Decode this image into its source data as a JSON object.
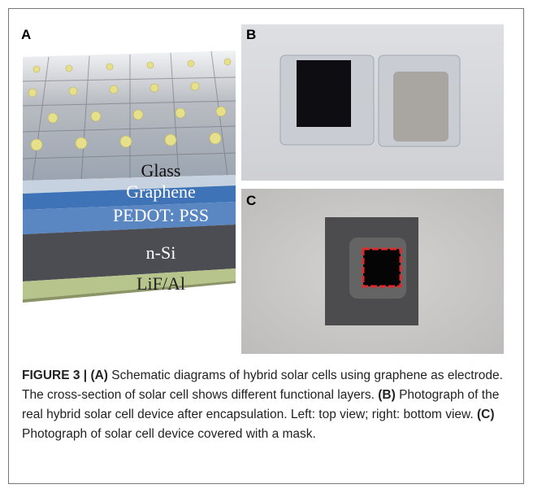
{
  "panels": {
    "a": {
      "label": "A",
      "layers": [
        "Glass",
        "Graphene",
        "PEDOT: PSS",
        "n-Si",
        "LiF/Al"
      ]
    },
    "b": {
      "label": "B"
    },
    "c": {
      "label": "C"
    }
  },
  "caption": {
    "figure_label": "FIGURE 3 |",
    "parts": [
      {
        "label": "(A)",
        "text": "Schematic diagrams of hybrid solar cells using graphene as electrode. The cross-section of solar cell shows different functional layers."
      },
      {
        "label": "(B)",
        "text": "Photograph of the real hybrid solar cell device after encapsulation. Left: top view; right: bottom view."
      },
      {
        "label": "(C)",
        "text": "Photograph of solar cell device covered with a mask."
      }
    ]
  }
}
